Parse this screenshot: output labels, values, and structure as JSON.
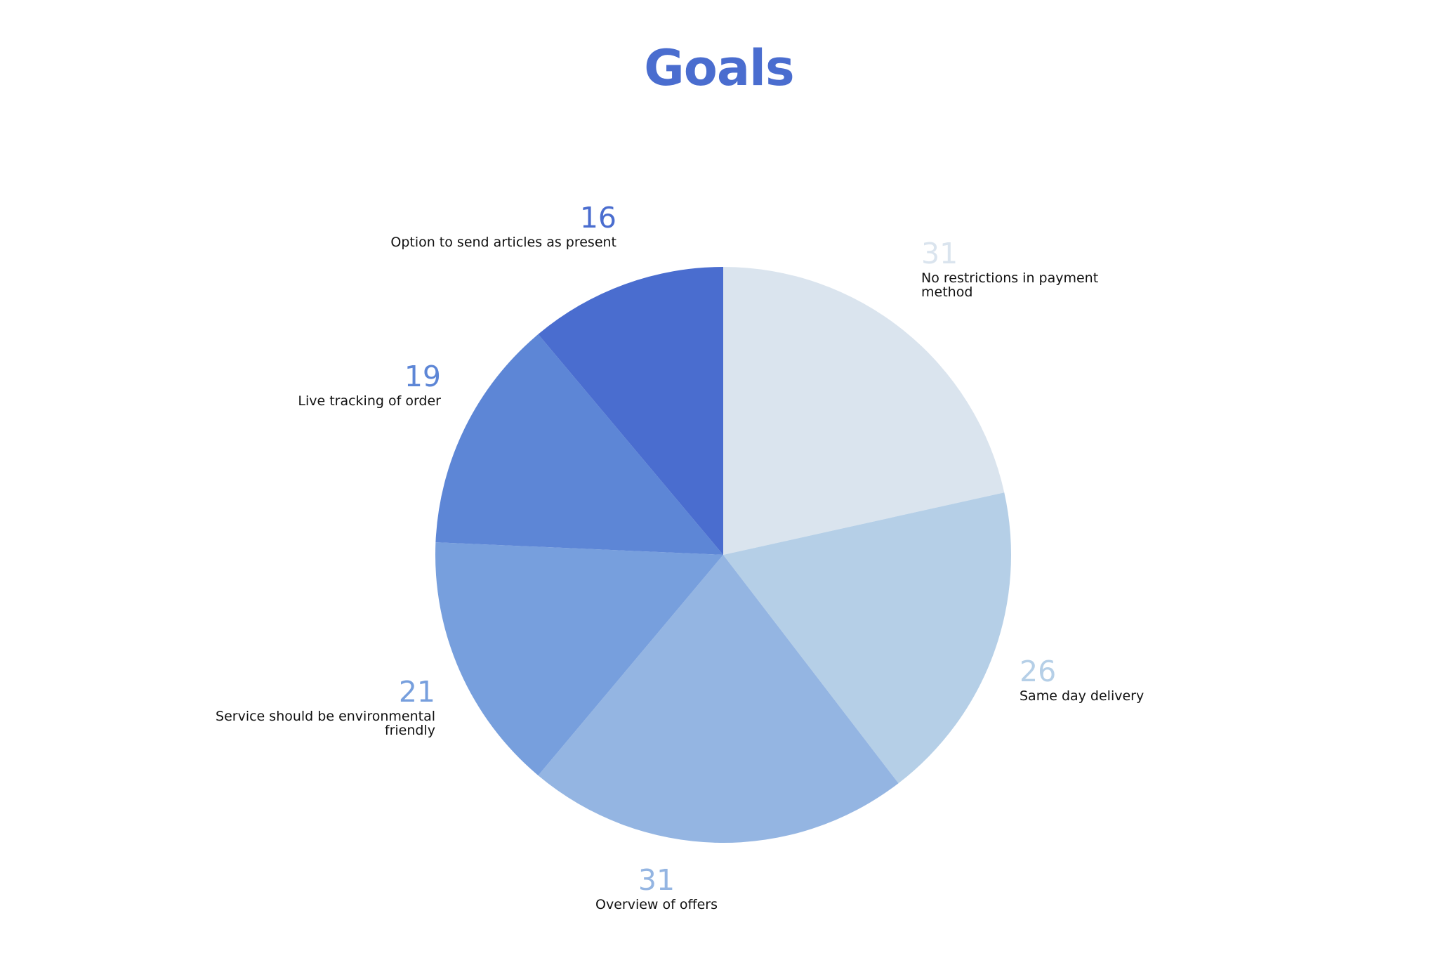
{
  "chart_data": {
    "type": "pie",
    "title": "Goals",
    "title_color": "#4a6dcf",
    "start_angle": "12 o'clock",
    "direction": "clockwise",
    "legend": "none",
    "slices": [
      {
        "label": "No restrictions in payment method",
        "value": 31,
        "color": "#dae4ee"
      },
      {
        "label": "Same day delivery",
        "value": 26,
        "color": "#b5cfe7"
      },
      {
        "label": "Overview of offers",
        "value": 31,
        "color": "#94b5e2"
      },
      {
        "label": "Service should be environmental friendly",
        "value": 21,
        "color": "#779fdd"
      },
      {
        "label": "Live tracking of order",
        "value": 19,
        "color": "#5d86d6"
      },
      {
        "label": "Option to send articles as present",
        "value": 16,
        "color": "#4a6dcf"
      }
    ]
  }
}
